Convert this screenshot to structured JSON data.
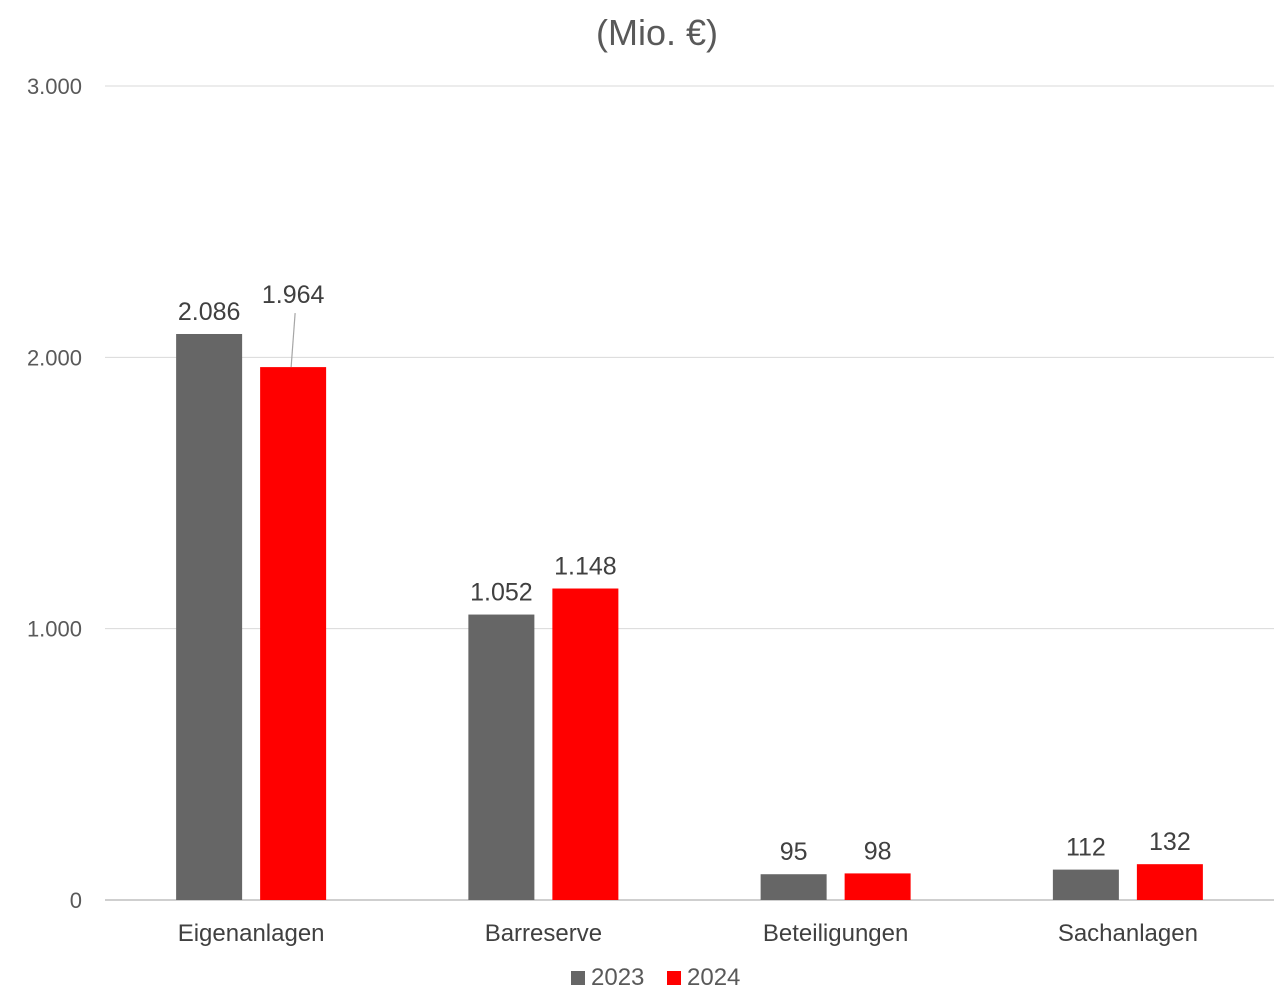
{
  "chart_data": {
    "type": "bar",
    "title": "(Mio. €)",
    "categories": [
      "Eigenanlagen",
      "Barreserve",
      "Beteiligungen",
      "Sachanlagen"
    ],
    "series": [
      {
        "name": "2023",
        "color": "#666666",
        "values": [
          2086,
          1052,
          95,
          112
        ],
        "labels": [
          "2.086",
          "1.052",
          "95",
          "112"
        ]
      },
      {
        "name": "2024",
        "color": "#ff0000",
        "values": [
          1964,
          1148,
          98,
          132
        ],
        "labels": [
          "1.964",
          "1.148",
          "98",
          "132"
        ]
      }
    ],
    "ylim": [
      0,
      3000
    ],
    "yticks": [
      0,
      1000,
      2000,
      3000
    ],
    "ytick_labels": [
      "0",
      "1.000",
      "2.000",
      "3.000"
    ],
    "grid": true,
    "legend_position": "bottom"
  }
}
